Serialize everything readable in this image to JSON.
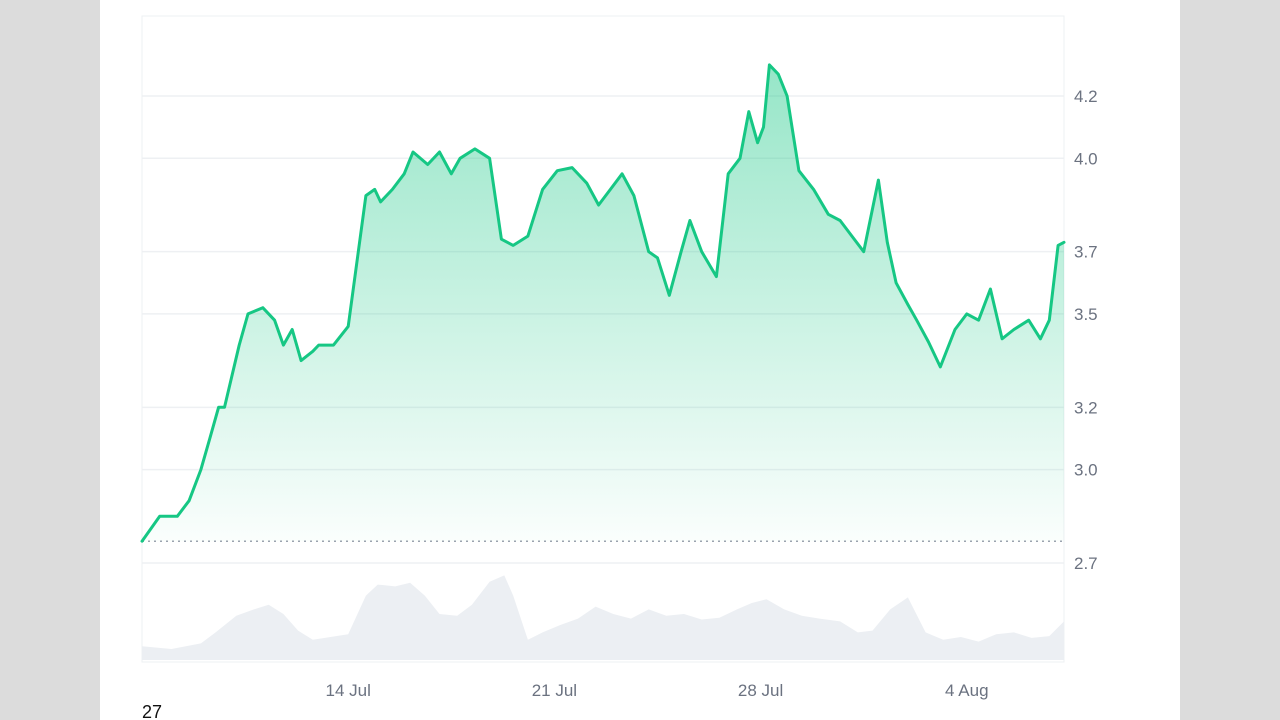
{
  "chart_data": {
    "type": "area",
    "title": "",
    "xlabel": "",
    "ylabel": "",
    "x_ticks": [
      {
        "label": "14 Jul",
        "day": 7
      },
      {
        "label": "21 Jul",
        "day": 14
      },
      {
        "label": "28 Jul",
        "day": 21
      },
      {
        "label": "4 Aug",
        "day": 28
      }
    ],
    "y_ticks": [
      {
        "label": "4.2",
        "value": 4.2
      },
      {
        "label": "4.0",
        "value": 4.0
      },
      {
        "label": "3.7",
        "value": 3.7
      },
      {
        "label": "3.5",
        "value": 3.5
      },
      {
        "label": "3.2",
        "value": 3.2
      },
      {
        "label": "3.0",
        "value": 3.0
      },
      {
        "label": "2.7",
        "value": 2.7
      }
    ],
    "ylim": [
      2.7,
      4.4
    ],
    "xlim": [
      0,
      31.3
    ],
    "baseline": 2.77,
    "corner_label": "27",
    "colors": {
      "line": "#16c784",
      "fill": "#16c784",
      "volume": "#eceff3",
      "grid": "#eef0f3"
    },
    "series": [
      {
        "x": [
          0,
          0.6,
          1.2,
          1.6,
          2.0,
          2.3,
          2.6,
          2.8,
          3.3,
          3.6,
          4.1,
          4.5,
          4.8,
          5.1,
          5.4,
          5.8,
          6.0,
          6.5,
          7.0,
          7.6,
          7.9,
          8.1,
          8.5,
          8.9,
          9.2,
          9.7,
          10.1,
          10.5,
          10.8,
          11.3,
          11.8,
          12.2,
          12.6,
          13.1,
          13.6,
          14.1,
          14.6,
          15.1,
          15.5,
          15.9,
          16.3,
          16.7,
          17.2,
          17.5,
          17.9,
          18.3,
          18.6,
          19.0,
          19.5,
          19.9,
          20.3,
          20.6,
          20.9,
          21.1,
          21.3,
          21.6,
          21.9,
          22.3,
          22.8,
          23.3,
          23.7,
          24.1,
          24.5,
          25.0,
          25.3,
          25.6,
          26.0,
          26.3,
          26.7,
          27.1,
          27.6,
          28.0,
          28.4,
          28.8,
          29.2,
          29.6,
          30.1,
          30.5,
          30.8,
          31.1,
          31.3
        ],
        "y": [
          2.77,
          2.85,
          2.85,
          2.9,
          3.0,
          3.1,
          3.2,
          3.2,
          3.4,
          3.5,
          3.52,
          3.48,
          3.4,
          3.45,
          3.35,
          3.38,
          3.4,
          3.4,
          3.46,
          3.88,
          3.9,
          3.86,
          3.9,
          3.95,
          4.02,
          3.98,
          4.02,
          3.95,
          4.0,
          4.03,
          4.0,
          3.74,
          3.72,
          3.75,
          3.9,
          3.96,
          3.97,
          3.92,
          3.85,
          3.9,
          3.95,
          3.88,
          3.7,
          3.68,
          3.56,
          3.7,
          3.8,
          3.7,
          3.62,
          3.95,
          4.0,
          4.15,
          4.05,
          4.1,
          4.3,
          4.27,
          4.2,
          3.96,
          3.9,
          3.82,
          3.8,
          3.75,
          3.7,
          3.93,
          3.73,
          3.6,
          3.53,
          3.48,
          3.41,
          3.33,
          3.45,
          3.5,
          3.48,
          3.58,
          3.42,
          3.45,
          3.48,
          3.42,
          3.48,
          3.72,
          3.73
        ]
      }
    ],
    "volume": {
      "x": [
        0,
        1,
        2,
        2.5,
        3.2,
        3.8,
        4.3,
        4.8,
        5.3,
        5.8,
        6.4,
        7.0,
        7.6,
        8.0,
        8.6,
        9.1,
        9.6,
        10.1,
        10.7,
        11.2,
        11.8,
        12.3,
        12.6,
        13.1,
        13.6,
        14.2,
        14.8,
        15.4,
        16.0,
        16.6,
        17.2,
        17.8,
        18.4,
        19.0,
        19.6,
        20.2,
        20.7,
        21.2,
        21.8,
        22.4,
        23.0,
        23.7,
        24.3,
        24.8,
        25.4,
        26.0,
        26.6,
        27.2,
        27.8,
        28.4,
        29.0,
        29.6,
        30.2,
        30.8,
        31.3
      ],
      "y": [
        0.15,
        0.12,
        0.18,
        0.3,
        0.48,
        0.55,
        0.6,
        0.5,
        0.32,
        0.22,
        0.25,
        0.28,
        0.7,
        0.82,
        0.8,
        0.84,
        0.7,
        0.5,
        0.48,
        0.6,
        0.85,
        0.92,
        0.7,
        0.22,
        0.3,
        0.38,
        0.45,
        0.58,
        0.5,
        0.45,
        0.55,
        0.48,
        0.5,
        0.44,
        0.46,
        0.55,
        0.62,
        0.66,
        0.55,
        0.48,
        0.45,
        0.42,
        0.3,
        0.32,
        0.55,
        0.68,
        0.3,
        0.22,
        0.25,
        0.2,
        0.28,
        0.3,
        0.24,
        0.26,
        0.42
      ]
    }
  }
}
